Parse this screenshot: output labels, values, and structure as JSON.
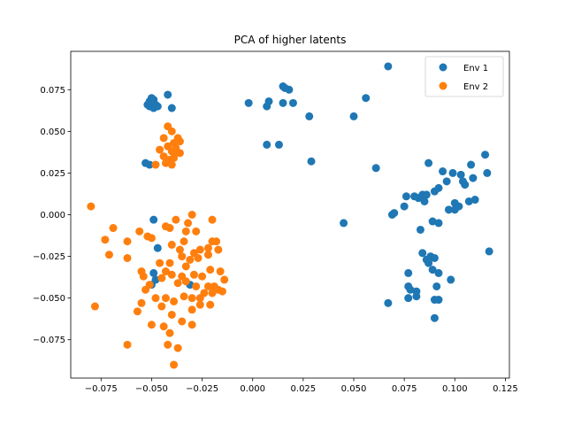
{
  "chart_data": {
    "type": "scatter",
    "title": "PCA of higher latents",
    "xlabel": "",
    "ylabel": "",
    "xlim": [
      -0.09,
      0.127
    ],
    "ylim": [
      -0.098,
      0.098
    ],
    "xticks": [
      -0.075,
      -0.05,
      -0.025,
      0.0,
      0.025,
      0.05,
      0.075,
      0.1,
      0.125
    ],
    "xtick_labels": [
      "−0.075",
      "−0.050",
      "−0.025",
      "0.000",
      "0.025",
      "0.050",
      "0.075",
      "0.100",
      "0.125"
    ],
    "yticks": [
      -0.075,
      -0.05,
      -0.025,
      0.0,
      0.025,
      0.05,
      0.075
    ],
    "ytick_labels": [
      "−0.075",
      "−0.050",
      "−0.025",
      "0.000",
      "0.025",
      "0.050",
      "0.075"
    ],
    "grid": false,
    "legend": "top-right",
    "series": [
      {
        "name": "Env 1",
        "color": "#1f77b4",
        "points": [
          [
            -0.05,
            0.07
          ],
          [
            -0.049,
            0.069
          ],
          [
            -0.051,
            0.068
          ],
          [
            -0.05,
            0.067
          ],
          [
            -0.048,
            0.066
          ],
          [
            -0.051,
            0.065
          ],
          [
            -0.049,
            0.064
          ],
          [
            -0.047,
            0.065
          ],
          [
            -0.052,
            0.066
          ],
          [
            -0.042,
            0.072
          ],
          [
            -0.04,
            0.064
          ],
          [
            -0.053,
            0.031
          ],
          [
            -0.051,
            0.03
          ],
          [
            -0.002,
            0.067
          ],
          [
            0.007,
            0.065
          ],
          [
            0.008,
            0.068
          ],
          [
            0.015,
            0.077
          ],
          [
            0.016,
            0.076
          ],
          [
            0.018,
            0.075
          ],
          [
            0.015,
            0.067
          ],
          [
            0.02,
            0.067
          ],
          [
            0.028,
            0.059
          ],
          [
            0.029,
            0.032
          ],
          [
            0.007,
            0.042
          ],
          [
            0.013,
            0.042
          ],
          [
            0.05,
            0.059
          ],
          [
            0.056,
            0.07
          ],
          [
            0.067,
            0.089
          ],
          [
            0.061,
            0.028
          ],
          [
            0.045,
            -0.005
          ],
          [
            0.069,
            0.0
          ],
          [
            0.07,
            0.001
          ],
          [
            0.075,
            0.005
          ],
          [
            0.076,
            0.011
          ],
          [
            0.08,
            0.011
          ],
          [
            0.082,
            0.01
          ],
          [
            0.084,
            0.012
          ],
          [
            0.086,
            0.012
          ],
          [
            0.085,
            0.008
          ],
          [
            0.087,
            0.031
          ],
          [
            0.09,
            0.014
          ],
          [
            0.092,
            0.016
          ],
          [
            0.094,
            0.026
          ],
          [
            0.096,
            0.02
          ],
          [
            0.097,
            0.003
          ],
          [
            0.099,
            0.025
          ],
          [
            0.1,
            0.003
          ],
          [
            0.1,
            0.007
          ],
          [
            0.102,
            0.005
          ],
          [
            0.103,
            0.024
          ],
          [
            0.104,
            0.02
          ],
          [
            0.105,
            0.018
          ],
          [
            0.107,
            0.008
          ],
          [
            0.108,
            0.03
          ],
          [
            0.109,
            0.022
          ],
          [
            0.11,
            0.009
          ],
          [
            0.115,
            0.036
          ],
          [
            0.116,
            0.025
          ],
          [
            0.117,
            -0.022
          ],
          [
            0.083,
            -0.009
          ],
          [
            0.089,
            -0.004
          ],
          [
            0.092,
            -0.005
          ],
          [
            0.084,
            -0.023
          ],
          [
            0.086,
            -0.027
          ],
          [
            0.088,
            -0.025
          ],
          [
            0.09,
            -0.026
          ],
          [
            0.087,
            -0.029
          ],
          [
            0.089,
            -0.033
          ],
          [
            0.092,
            -0.035
          ],
          [
            0.098,
            -0.039
          ],
          [
            0.091,
            -0.043
          ],
          [
            0.09,
            -0.051
          ],
          [
            0.092,
            -0.051
          ],
          [
            0.09,
            -0.062
          ],
          [
            0.077,
            -0.035
          ],
          [
            0.077,
            -0.043
          ],
          [
            0.078,
            -0.045
          ],
          [
            0.081,
            -0.046
          ],
          [
            0.077,
            -0.05
          ],
          [
            0.081,
            -0.049
          ],
          [
            0.067,
            -0.053
          ],
          [
            -0.049,
            -0.003
          ],
          [
            -0.047,
            -0.02
          ],
          [
            -0.049,
            -0.035
          ],
          [
            -0.048,
            -0.039
          ],
          [
            -0.05,
            -0.042
          ],
          [
            -0.031,
            -0.042
          ]
        ]
      },
      {
        "name": "Env 2",
        "color": "#ff7f0e",
        "points": [
          [
            -0.042,
            0.053
          ],
          [
            -0.04,
            0.05
          ],
          [
            -0.044,
            0.046
          ],
          [
            -0.037,
            0.046
          ],
          [
            -0.039,
            0.043
          ],
          [
            -0.042,
            0.041
          ],
          [
            -0.038,
            0.04
          ],
          [
            -0.036,
            0.044
          ],
          [
            -0.046,
            0.039
          ],
          [
            -0.04,
            0.038
          ],
          [
            -0.038,
            0.037
          ],
          [
            -0.036,
            0.037
          ],
          [
            -0.044,
            0.035
          ],
          [
            -0.041,
            0.033
          ],
          [
            -0.039,
            0.034
          ],
          [
            -0.043,
            0.031
          ],
          [
            -0.048,
            0.03
          ],
          [
            -0.04,
            0.03
          ],
          [
            -0.08,
            0.005
          ],
          [
            -0.069,
            -0.008
          ],
          [
            -0.073,
            -0.015
          ],
          [
            -0.071,
            -0.024
          ],
          [
            -0.062,
            -0.016
          ],
          [
            -0.062,
            -0.026
          ],
          [
            -0.056,
            -0.01
          ],
          [
            -0.052,
            -0.013
          ],
          [
            -0.05,
            -0.014
          ],
          [
            -0.043,
            -0.007
          ],
          [
            -0.041,
            -0.008
          ],
          [
            -0.038,
            -0.003
          ],
          [
            -0.032,
            -0.005
          ],
          [
            -0.03,
            0.0
          ],
          [
            -0.02,
            -0.003
          ],
          [
            -0.033,
            -0.01
          ],
          [
            -0.028,
            -0.01
          ],
          [
            -0.034,
            -0.016
          ],
          [
            -0.04,
            -0.018
          ],
          [
            -0.036,
            -0.021
          ],
          [
            -0.026,
            -0.021
          ],
          [
            -0.022,
            -0.02
          ],
          [
            -0.02,
            -0.016
          ],
          [
            -0.018,
            -0.016
          ],
          [
            -0.017,
            -0.021
          ],
          [
            -0.029,
            -0.023
          ],
          [
            -0.031,
            -0.027
          ],
          [
            -0.027,
            -0.026
          ],
          [
            -0.022,
            -0.024
          ],
          [
            -0.035,
            -0.025
          ],
          [
            -0.033,
            -0.031
          ],
          [
            -0.041,
            -0.029
          ],
          [
            -0.046,
            -0.029
          ],
          [
            -0.043,
            -0.034
          ],
          [
            -0.045,
            -0.038
          ],
          [
            -0.04,
            -0.036
          ],
          [
            -0.037,
            -0.041
          ],
          [
            -0.035,
            -0.037
          ],
          [
            -0.033,
            -0.04
          ],
          [
            -0.029,
            -0.036
          ],
          [
            -0.025,
            -0.037
          ],
          [
            -0.021,
            -0.033
          ],
          [
            -0.016,
            -0.034
          ],
          [
            -0.014,
            -0.039
          ],
          [
            -0.019,
            -0.043
          ],
          [
            -0.022,
            -0.043
          ],
          [
            -0.024,
            -0.047
          ],
          [
            -0.026,
            -0.05
          ],
          [
            -0.02,
            -0.047
          ],
          [
            -0.017,
            -0.045
          ],
          [
            -0.015,
            -0.046
          ],
          [
            -0.028,
            -0.043
          ],
          [
            -0.03,
            -0.05
          ],
          [
            -0.034,
            -0.049
          ],
          [
            -0.039,
            -0.052
          ],
          [
            -0.043,
            -0.05
          ],
          [
            -0.048,
            -0.05
          ],
          [
            -0.051,
            -0.042
          ],
          [
            -0.054,
            -0.037
          ],
          [
            -0.053,
            -0.045
          ],
          [
            -0.055,
            -0.053
          ],
          [
            -0.057,
            -0.058
          ],
          [
            -0.055,
            -0.034
          ],
          [
            -0.045,
            -0.055
          ],
          [
            -0.04,
            -0.06
          ],
          [
            -0.035,
            -0.064
          ],
          [
            -0.03,
            -0.066
          ],
          [
            -0.026,
            -0.054
          ],
          [
            -0.021,
            -0.054
          ],
          [
            -0.03,
            -0.057
          ],
          [
            -0.05,
            -0.066
          ],
          [
            -0.044,
            -0.067
          ],
          [
            -0.041,
            -0.071
          ],
          [
            -0.037,
            -0.08
          ],
          [
            -0.062,
            -0.078
          ],
          [
            -0.042,
            -0.078
          ],
          [
            -0.078,
            -0.055
          ],
          [
            -0.039,
            -0.09
          ]
        ]
      }
    ]
  }
}
